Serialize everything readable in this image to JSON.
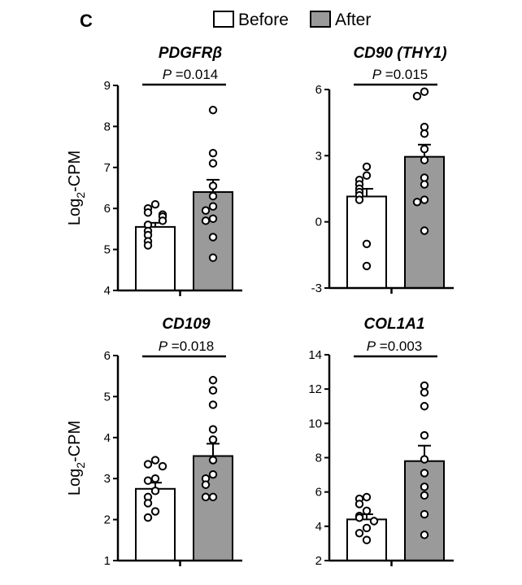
{
  "figure": {
    "panel_label": "C",
    "legend": [
      {
        "label": "Before",
        "color": "#ffffff"
      },
      {
        "label": "After",
        "color": "#9a9a9a"
      }
    ],
    "ylabel": {
      "prefix": "Log",
      "subscript": "2",
      "suffix": "-CPM"
    }
  },
  "chart_data": [
    {
      "type": "bar",
      "title": "PDGFRβ",
      "pvalue_prefix": "P",
      "pvalue_text": " =0.014",
      "categories": [
        "Before",
        "After"
      ],
      "values": [
        5.55,
        6.4
      ],
      "sem": [
        0.1,
        0.3
      ],
      "ylim": [
        4,
        9
      ],
      "yticks": [
        4,
        5,
        6,
        7,
        8,
        9
      ],
      "ylabel": "Log2-CPM",
      "points": {
        "Before": [
          6.1,
          6.0,
          5.9,
          5.85,
          5.8,
          5.7,
          5.6,
          5.45,
          5.35,
          5.2,
          5.1
        ],
        "After": [
          8.4,
          7.35,
          7.1,
          6.55,
          6.3,
          6.05,
          5.95,
          5.75,
          5.7,
          5.3,
          4.8
        ]
      }
    },
    {
      "type": "bar",
      "title": "CD90 (THY1)",
      "pvalue_prefix": "P",
      "pvalue_text": " =0.015",
      "categories": [
        "Before",
        "After"
      ],
      "values": [
        1.15,
        2.95
      ],
      "sem": [
        0.35,
        0.55
      ],
      "ylim": [
        -3,
        6
      ],
      "yticks": [
        -3,
        0,
        3,
        6
      ],
      "ylabel": "",
      "points": {
        "Before": [
          2.5,
          2.1,
          1.9,
          1.7,
          1.5,
          1.35,
          1.2,
          1.0,
          -1.0,
          -2.0
        ],
        "After": [
          5.9,
          5.7,
          4.3,
          4.0,
          3.3,
          2.8,
          2.0,
          1.7,
          1.0,
          0.9,
          -0.4
        ]
      }
    },
    {
      "type": "bar",
      "title": "CD109",
      "pvalue_prefix": "P",
      "pvalue_text": " =0.018",
      "categories": [
        "Before",
        "After"
      ],
      "values": [
        2.75,
        3.55
      ],
      "sem": [
        0.15,
        0.3
      ],
      "ylim": [
        1,
        6
      ],
      "yticks": [
        1,
        2,
        3,
        4,
        5,
        6
      ],
      "ylabel": "Log2-CPM",
      "points": {
        "Before": [
          3.45,
          3.35,
          3.3,
          3.0,
          2.95,
          2.7,
          2.55,
          2.4,
          2.2,
          2.05
        ],
        "After": [
          5.4,
          5.15,
          4.8,
          4.2,
          3.95,
          3.45,
          3.1,
          3.0,
          2.85,
          2.55,
          2.55
        ]
      }
    },
    {
      "type": "bar",
      "title": "COL1A1",
      "pvalue_prefix": "P",
      "pvalue_text": " =0.003",
      "categories": [
        "Before",
        "After"
      ],
      "values": [
        4.4,
        7.8
      ],
      "sem": [
        0.3,
        0.9
      ],
      "ylim": [
        2,
        14
      ],
      "yticks": [
        2,
        4,
        6,
        8,
        10,
        12,
        14
      ],
      "ylabel": "",
      "points": {
        "Before": [
          5.7,
          5.6,
          5.3,
          4.9,
          4.6,
          4.5,
          4.3,
          3.9,
          3.6,
          3.2
        ],
        "After": [
          12.2,
          11.8,
          11.0,
          9.3,
          7.9,
          7.1,
          6.3,
          5.8,
          4.7,
          3.5
        ]
      }
    }
  ]
}
